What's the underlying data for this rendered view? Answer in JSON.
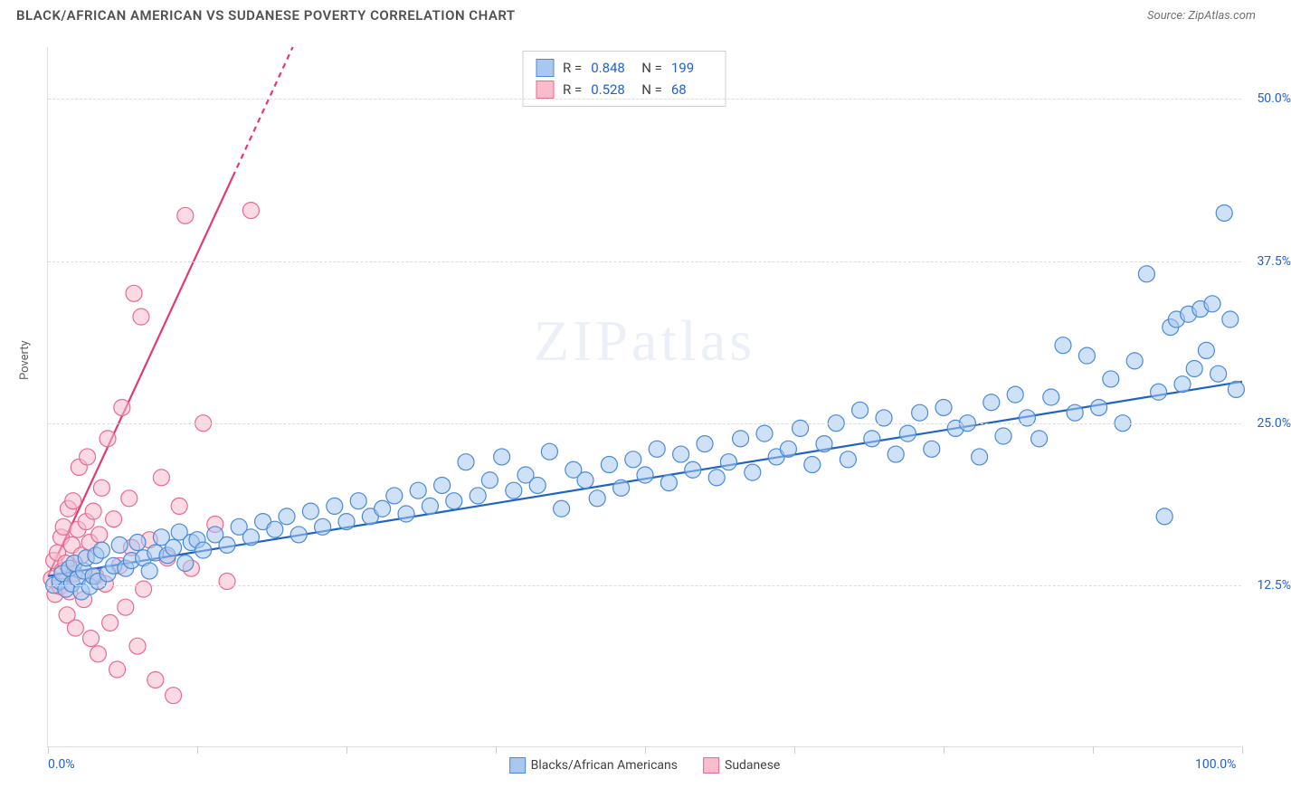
{
  "header": {
    "title": "BLACK/AFRICAN AMERICAN VS SUDANESE POVERTY CORRELATION CHART",
    "source": "Source: ZipAtlas.com"
  },
  "watermark": "ZIPatlas",
  "chart": {
    "type": "scatter",
    "ylabel": "Poverty",
    "xlim": [
      0,
      100
    ],
    "ylim": [
      0,
      54
    ],
    "xtick_labels": [
      {
        "pos": 0,
        "label": "0.0%"
      },
      {
        "pos": 100,
        "label": "100.0%"
      }
    ],
    "xtick_positions": [
      0,
      12.5,
      25,
      37.5,
      50,
      62.5,
      75,
      87.5,
      100
    ],
    "ytick_labels": [
      {
        "pos": 12.5,
        "label": "12.5%"
      },
      {
        "pos": 25.0,
        "label": "25.0%"
      },
      {
        "pos": 37.5,
        "label": "37.5%"
      },
      {
        "pos": 50.0,
        "label": "50.0%"
      }
    ],
    "grid_y": [
      12.5,
      25.0,
      37.5,
      50.0
    ],
    "grid_color": "#dcdcdc",
    "background_color": "#ffffff",
    "marker_radius": 9,
    "marker_stroke_width": 1.2,
    "axis_label_color": "#2060d0",
    "axis_label_fontsize": 14
  },
  "series": {
    "blue": {
      "label": "Blacks/African Americans",
      "fill": "#a8c8f0",
      "stroke": "#4a8ad8",
      "line_color": "#1f63c7",
      "line_width": 2.2,
      "fill_opacity": 0.55,
      "trend": {
        "x1": 0,
        "y1": 13.2,
        "x2": 100,
        "y2": 28.2
      },
      "points": [
        [
          0.5,
          12.5
        ],
        [
          1,
          12.8
        ],
        [
          1.2,
          13.4
        ],
        [
          1.5,
          12.2
        ],
        [
          1.8,
          13.8
        ],
        [
          2,
          12.6
        ],
        [
          2.2,
          14.2
        ],
        [
          2.5,
          13.0
        ],
        [
          2.8,
          12.0
        ],
        [
          3,
          13.6
        ],
        [
          3.2,
          14.6
        ],
        [
          3.5,
          12.4
        ],
        [
          3.8,
          13.2
        ],
        [
          4,
          14.8
        ],
        [
          4.2,
          12.8
        ],
        [
          4.5,
          15.2
        ],
        [
          5,
          13.4
        ],
        [
          5.5,
          14.0
        ],
        [
          6,
          15.6
        ],
        [
          6.5,
          13.8
        ],
        [
          7,
          14.4
        ],
        [
          7.5,
          15.8
        ],
        [
          8,
          14.6
        ],
        [
          8.5,
          13.6
        ],
        [
          9,
          15.0
        ],
        [
          9.5,
          16.2
        ],
        [
          10,
          14.8
        ],
        [
          10.5,
          15.4
        ],
        [
          11,
          16.6
        ],
        [
          11.5,
          14.2
        ],
        [
          12,
          15.8
        ],
        [
          12.5,
          16.0
        ],
        [
          13,
          15.2
        ],
        [
          14,
          16.4
        ],
        [
          15,
          15.6
        ],
        [
          16,
          17.0
        ],
        [
          17,
          16.2
        ],
        [
          18,
          17.4
        ],
        [
          19,
          16.8
        ],
        [
          20,
          17.8
        ],
        [
          21,
          16.4
        ],
        [
          22,
          18.2
        ],
        [
          23,
          17.0
        ],
        [
          24,
          18.6
        ],
        [
          25,
          17.4
        ],
        [
          26,
          19.0
        ],
        [
          27,
          17.8
        ],
        [
          28,
          18.4
        ],
        [
          29,
          19.4
        ],
        [
          30,
          18.0
        ],
        [
          31,
          19.8
        ],
        [
          32,
          18.6
        ],
        [
          33,
          20.2
        ],
        [
          34,
          19.0
        ],
        [
          35,
          22.0
        ],
        [
          36,
          19.4
        ],
        [
          37,
          20.6
        ],
        [
          38,
          22.4
        ],
        [
          39,
          19.8
        ],
        [
          40,
          21.0
        ],
        [
          41,
          20.2
        ],
        [
          42,
          22.8
        ],
        [
          43,
          18.4
        ],
        [
          44,
          21.4
        ],
        [
          45,
          20.6
        ],
        [
          46,
          19.2
        ],
        [
          47,
          21.8
        ],
        [
          48,
          20.0
        ],
        [
          49,
          22.2
        ],
        [
          50,
          21.0
        ],
        [
          51,
          23.0
        ],
        [
          52,
          20.4
        ],
        [
          53,
          22.6
        ],
        [
          54,
          21.4
        ],
        [
          55,
          23.4
        ],
        [
          56,
          20.8
        ],
        [
          57,
          22.0
        ],
        [
          58,
          23.8
        ],
        [
          59,
          21.2
        ],
        [
          60,
          24.2
        ],
        [
          61,
          22.4
        ],
        [
          62,
          23.0
        ],
        [
          63,
          24.6
        ],
        [
          64,
          21.8
        ],
        [
          65,
          23.4
        ],
        [
          66,
          25.0
        ],
        [
          67,
          22.2
        ],
        [
          68,
          26.0
        ],
        [
          69,
          23.8
        ],
        [
          70,
          25.4
        ],
        [
          71,
          22.6
        ],
        [
          72,
          24.2
        ],
        [
          73,
          25.8
        ],
        [
          74,
          23.0
        ],
        [
          75,
          26.2
        ],
        [
          76,
          24.6
        ],
        [
          77,
          25.0
        ],
        [
          78,
          22.4
        ],
        [
          79,
          26.6
        ],
        [
          80,
          24.0
        ],
        [
          81,
          27.2
        ],
        [
          82,
          25.4
        ],
        [
          83,
          23.8
        ],
        [
          84,
          27.0
        ],
        [
          85,
          31.0
        ],
        [
          86,
          25.8
        ],
        [
          87,
          30.2
        ],
        [
          88,
          26.2
        ],
        [
          89,
          28.4
        ],
        [
          90,
          25.0
        ],
        [
          91,
          29.8
        ],
        [
          92,
          36.5
        ],
        [
          93,
          27.4
        ],
        [
          93.5,
          17.8
        ],
        [
          94,
          32.4
        ],
        [
          94.5,
          33.0
        ],
        [
          95,
          28.0
        ],
        [
          95.5,
          33.4
        ],
        [
          96,
          29.2
        ],
        [
          96.5,
          33.8
        ],
        [
          97,
          30.6
        ],
        [
          97.5,
          34.2
        ],
        [
          98,
          28.8
        ],
        [
          98.5,
          41.2
        ],
        [
          99,
          33.0
        ],
        [
          99.5,
          27.6
        ]
      ]
    },
    "pink": {
      "label": "Sudanese",
      "fill": "#f8bccc",
      "stroke": "#e86a90",
      "line_color": "#e13b73",
      "line_width": 2.2,
      "line_dash_after": 44,
      "fill_opacity": 0.55,
      "trend": {
        "x1": 0,
        "y1": 13.2,
        "x2": 20.5,
        "y2": 54
      },
      "points": [
        [
          0.3,
          13.0
        ],
        [
          0.5,
          14.4
        ],
        [
          0.6,
          11.8
        ],
        [
          0.8,
          15.0
        ],
        [
          1.0,
          12.4
        ],
        [
          1.1,
          16.2
        ],
        [
          1.2,
          13.6
        ],
        [
          1.3,
          17.0
        ],
        [
          1.5,
          14.2
        ],
        [
          1.6,
          10.2
        ],
        [
          1.7,
          18.4
        ],
        [
          1.8,
          12.0
        ],
        [
          2.0,
          15.6
        ],
        [
          2.1,
          19.0
        ],
        [
          2.2,
          13.4
        ],
        [
          2.3,
          9.2
        ],
        [
          2.5,
          16.8
        ],
        [
          2.6,
          21.6
        ],
        [
          2.8,
          14.8
        ],
        [
          3.0,
          11.4
        ],
        [
          3.2,
          17.4
        ],
        [
          3.3,
          22.4
        ],
        [
          3.5,
          15.8
        ],
        [
          3.6,
          8.4
        ],
        [
          3.8,
          18.2
        ],
        [
          4.0,
          13.2
        ],
        [
          4.2,
          7.2
        ],
        [
          4.3,
          16.4
        ],
        [
          4.5,
          20.0
        ],
        [
          4.8,
          12.6
        ],
        [
          5.0,
          23.8
        ],
        [
          5.2,
          9.6
        ],
        [
          5.5,
          17.6
        ],
        [
          5.8,
          6.0
        ],
        [
          6.0,
          14.0
        ],
        [
          6.2,
          26.2
        ],
        [
          6.5,
          10.8
        ],
        [
          6.8,
          19.2
        ],
        [
          7.0,
          15.4
        ],
        [
          7.2,
          35.0
        ],
        [
          7.5,
          7.8
        ],
        [
          7.8,
          33.2
        ],
        [
          8.0,
          12.2
        ],
        [
          8.5,
          16.0
        ],
        [
          9.0,
          5.2
        ],
        [
          9.5,
          20.8
        ],
        [
          10.0,
          14.6
        ],
        [
          10.5,
          4.0
        ],
        [
          11.0,
          18.6
        ],
        [
          11.5,
          41.0
        ],
        [
          12.0,
          13.8
        ],
        [
          13.0,
          25.0
        ],
        [
          14.0,
          17.2
        ],
        [
          15.0,
          12.8
        ],
        [
          17.0,
          41.4
        ]
      ]
    }
  },
  "top_legend": {
    "rows": [
      {
        "series": "blue",
        "r_label": "R =",
        "r": "0.848",
        "n_label": "N =",
        "n": "199"
      },
      {
        "series": "pink",
        "r_label": "R =",
        "r": "0.528",
        "n_label": "N =",
        "n": "68"
      }
    ]
  },
  "bottom_legend": [
    {
      "series": "blue"
    },
    {
      "series": "pink"
    }
  ]
}
